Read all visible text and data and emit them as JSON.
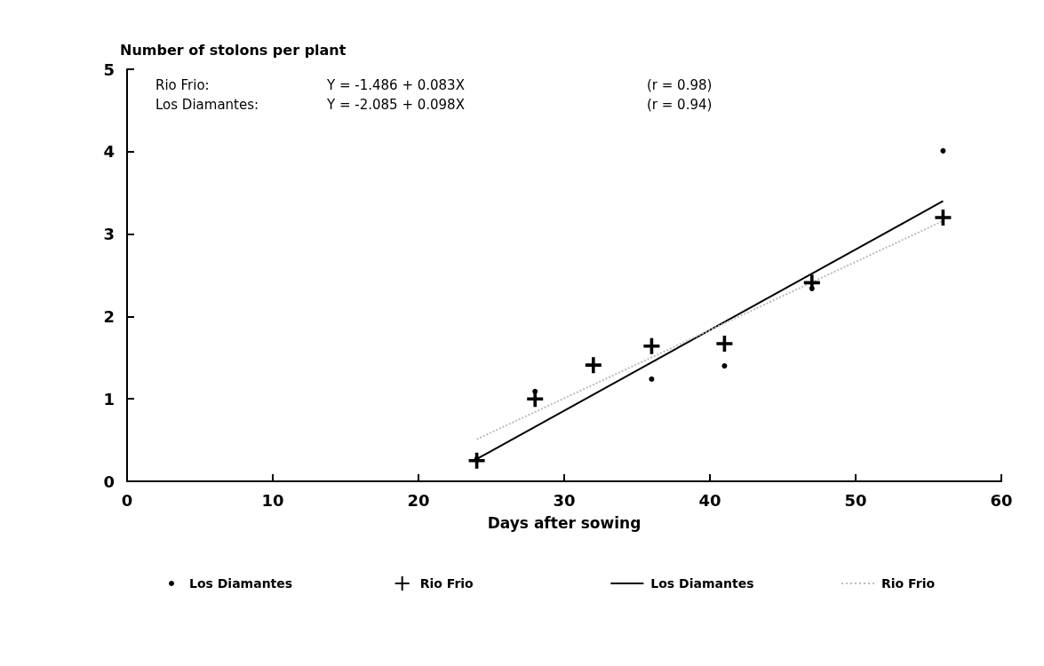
{
  "chart_data": {
    "type": "scatter",
    "xlabel": "Days after sowing",
    "ylabel": "Number of stolons per plant",
    "annotations": [
      "Rio Frio:",
      "Y = -1.486 + 0.083X",
      "(r = 0.98)",
      "Los Diamantes:",
      "Y = -2.085 + 0.098X",
      "(r = 0.94)"
    ],
    "series": [
      {
        "name": "Los Diamantes",
        "marker": "circle",
        "color": "#000000",
        "x": [
          24,
          28,
          36,
          41,
          47,
          56
        ],
        "values": [
          0.27,
          1.09,
          1.24,
          1.4,
          2.34,
          4.01
        ]
      },
      {
        "name": "Rio Frio",
        "marker": "cross",
        "color": "#000000",
        "x": [
          24,
          28,
          32,
          36,
          41,
          47,
          56
        ],
        "values": [
          0.25,
          1.0,
          1.41,
          1.64,
          1.67,
          2.41,
          3.2
        ]
      },
      {
        "name": "Los Diamantes",
        "type": "line",
        "marker": "none",
        "line_style": "solid",
        "color": "#000000",
        "x": [
          24,
          56
        ],
        "values": [
          0.27,
          3.4
        ]
      },
      {
        "name": "Rio Frio",
        "type": "line",
        "marker": "none",
        "line_style": "dotted",
        "color": "#bbbbbb",
        "x": [
          24,
          56
        ],
        "values": [
          0.51,
          3.16
        ]
      }
    ],
    "xlim": [
      0,
      60
    ],
    "xticks": [
      0,
      10,
      20,
      30,
      40,
      50,
      60
    ],
    "ylim": [
      0,
      5
    ],
    "yticks": [
      0,
      1,
      2,
      3,
      4,
      5
    ],
    "grid": false,
    "legend": "bottom"
  }
}
